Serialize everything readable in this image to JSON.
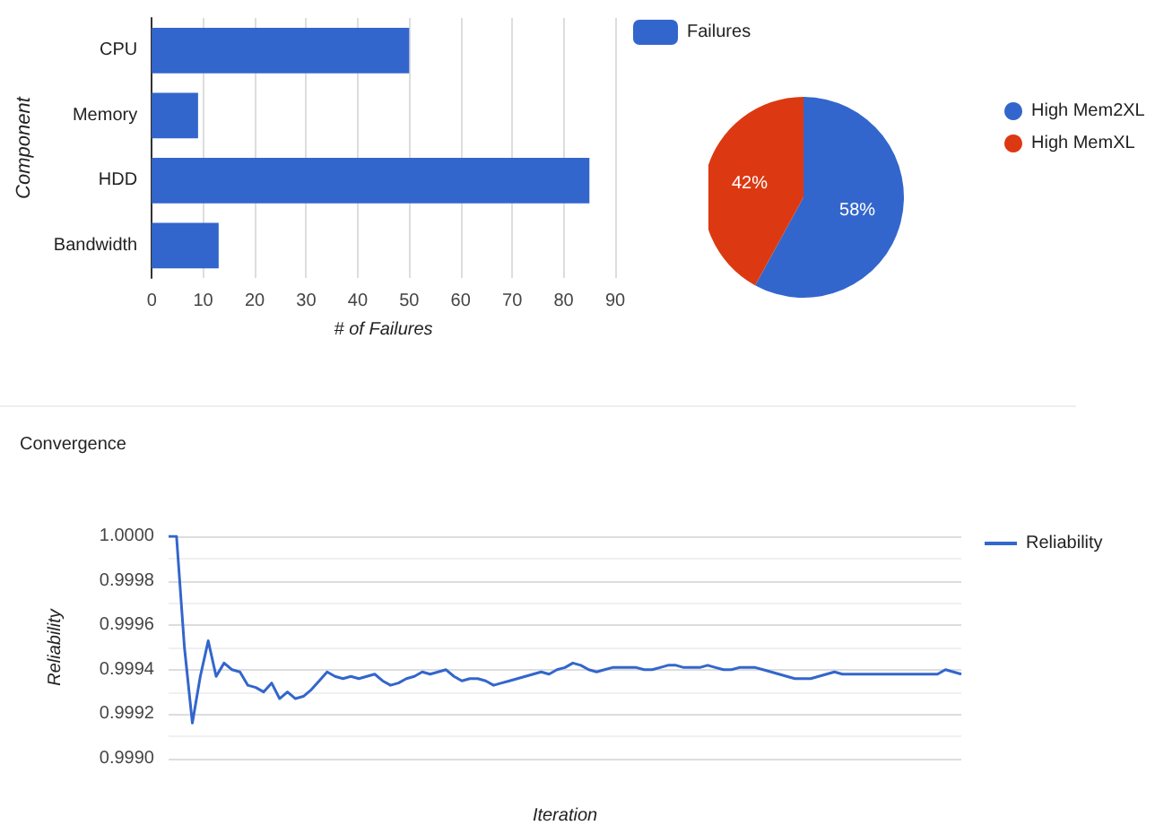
{
  "chart_data": [
    {
      "type": "bar",
      "orientation": "horizontal",
      "categories": [
        "CPU",
        "Memory",
        "HDD",
        "Bandwidth"
      ],
      "series": [
        {
          "name": "Failures",
          "color": "#3366cc",
          "values": [
            50,
            9,
            85,
            13
          ]
        }
      ],
      "xlabel": "# of Failures",
      "ylabel": "Component",
      "xlim": [
        0,
        90
      ],
      "xticks": [
        0,
        10,
        20,
        30,
        40,
        50,
        60,
        70,
        80,
        90
      ],
      "grid": "x",
      "legend": "top right"
    },
    {
      "type": "pie",
      "categories": [
        "High Mem2XL",
        "High MemXL"
      ],
      "values": [
        58,
        42
      ],
      "colors": [
        "#3366cc",
        "#dc3912"
      ],
      "value_labels": [
        "58%",
        "42%"
      ],
      "legend": "right"
    },
    {
      "type": "line",
      "title": "Convergence",
      "xlabel": "Iteration",
      "ylabel": "Reliability",
      "tick_labels": "y",
      "grid": "y",
      "legend": "right",
      "categories": [
        null,
        null,
        null,
        null,
        null,
        null,
        null,
        null,
        null,
        null,
        null,
        null,
        null,
        null,
        null,
        null,
        null,
        null,
        null,
        null,
        null,
        null,
        null,
        null,
        null,
        null,
        null,
        null,
        null,
        null,
        null,
        null,
        null,
        null,
        null,
        null,
        null,
        null,
        null,
        null,
        null,
        null,
        null,
        null,
        null,
        null,
        null,
        null,
        null,
        null,
        null,
        null,
        null,
        null,
        null,
        null,
        null,
        null,
        null,
        null,
        null,
        null,
        null,
        null,
        null,
        null,
        null,
        null,
        null,
        null,
        null,
        null,
        null,
        null,
        null,
        null,
        null,
        null,
        null,
        null,
        null,
        null,
        null,
        null,
        null,
        null,
        null,
        null,
        null,
        null,
        null,
        null,
        null,
        null,
        null,
        null,
        null,
        null,
        null,
        null,
        null
      ],
      "ylim": [
        0.999,
        1.0
      ],
      "yticks": [
        {
          "value": 0.999,
          "label": "0.9990"
        },
        {
          "value": 0.9992,
          "label": "0.9992"
        },
        {
          "value": 0.9994,
          "label": "0.9994"
        },
        {
          "value": 0.9996,
          "label": "0.9996"
        },
        {
          "value": 0.9998,
          "label": "0.9998"
        },
        {
          "value": 1.0,
          "label": "1.0000"
        }
      ],
      "series": [
        {
          "name": "Reliability",
          "color": "#3366cc",
          "values": [
            1.0,
            1.0,
            0.9995,
            0.99916,
            0.99937,
            0.99953,
            0.99937,
            0.99943,
            0.9994,
            0.99939,
            0.99933,
            0.99932,
            0.9993,
            0.99934,
            0.99927,
            0.9993,
            0.99927,
            0.99928,
            0.99931,
            0.99935,
            0.99939,
            0.99937,
            0.99936,
            0.99937,
            0.99936,
            0.99937,
            0.99938,
            0.99935,
            0.99933,
            0.99934,
            0.99936,
            0.99937,
            0.99939,
            0.99938,
            0.99939,
            0.9994,
            0.99937,
            0.99935,
            0.99936,
            0.99936,
            0.99935,
            0.99933,
            0.99934,
            0.99935,
            0.99936,
            0.99937,
            0.99938,
            0.99939,
            0.99938,
            0.9994,
            0.99941,
            0.99943,
            0.99942,
            0.9994,
            0.99939,
            0.9994,
            0.99941,
            0.99941,
            0.99941,
            0.99941,
            0.9994,
            0.9994,
            0.99941,
            0.99942,
            0.99942,
            0.99941,
            0.99941,
            0.99941,
            0.99942,
            0.99941,
            0.9994,
            0.9994,
            0.99941,
            0.99941,
            0.99941,
            0.9994,
            0.99939,
            0.99938,
            0.99937,
            0.99936,
            0.99936,
            0.99936,
            0.99937,
            0.99938,
            0.99939,
            0.99938,
            0.99938,
            0.99938,
            0.99938,
            0.99938,
            0.99938,
            0.99938,
            0.99938,
            0.99938,
            0.99938,
            0.99938,
            0.99938,
            0.99938,
            0.9994,
            0.99939,
            0.99938
          ]
        }
      ]
    }
  ]
}
